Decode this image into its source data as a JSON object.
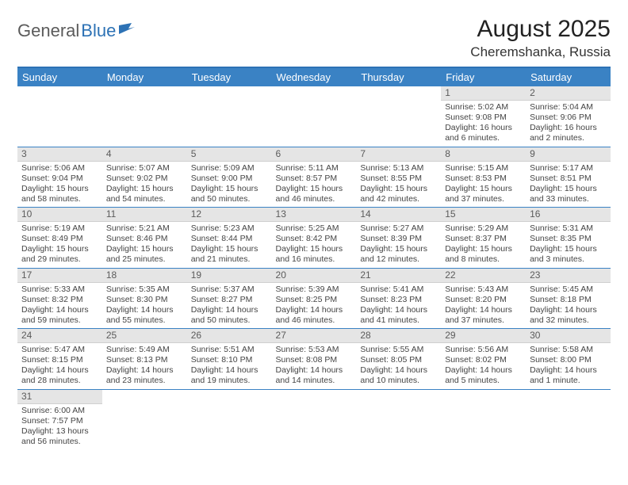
{
  "logo": {
    "general": "General",
    "blue": "Blue"
  },
  "title": "August 2025",
  "location": "Cheremshanka, Russia",
  "colors": {
    "header_bg": "#3a82c4",
    "header_border": "#2d72b5",
    "daynum_bg": "#e5e5e5",
    "text": "#333333",
    "logo_gray": "#5b5b5b",
    "logo_blue": "#2d72b5"
  },
  "day_headers": [
    "Sunday",
    "Monday",
    "Tuesday",
    "Wednesday",
    "Thursday",
    "Friday",
    "Saturday"
  ],
  "weeks": [
    [
      null,
      null,
      null,
      null,
      null,
      {
        "n": "1",
        "sunrise": "Sunrise: 5:02 AM",
        "sunset": "Sunset: 9:08 PM",
        "daylight": "Daylight: 16 hours and 6 minutes."
      },
      {
        "n": "2",
        "sunrise": "Sunrise: 5:04 AM",
        "sunset": "Sunset: 9:06 PM",
        "daylight": "Daylight: 16 hours and 2 minutes."
      }
    ],
    [
      {
        "n": "3",
        "sunrise": "Sunrise: 5:06 AM",
        "sunset": "Sunset: 9:04 PM",
        "daylight": "Daylight: 15 hours and 58 minutes."
      },
      {
        "n": "4",
        "sunrise": "Sunrise: 5:07 AM",
        "sunset": "Sunset: 9:02 PM",
        "daylight": "Daylight: 15 hours and 54 minutes."
      },
      {
        "n": "5",
        "sunrise": "Sunrise: 5:09 AM",
        "sunset": "Sunset: 9:00 PM",
        "daylight": "Daylight: 15 hours and 50 minutes."
      },
      {
        "n": "6",
        "sunrise": "Sunrise: 5:11 AM",
        "sunset": "Sunset: 8:57 PM",
        "daylight": "Daylight: 15 hours and 46 minutes."
      },
      {
        "n": "7",
        "sunrise": "Sunrise: 5:13 AM",
        "sunset": "Sunset: 8:55 PM",
        "daylight": "Daylight: 15 hours and 42 minutes."
      },
      {
        "n": "8",
        "sunrise": "Sunrise: 5:15 AM",
        "sunset": "Sunset: 8:53 PM",
        "daylight": "Daylight: 15 hours and 37 minutes."
      },
      {
        "n": "9",
        "sunrise": "Sunrise: 5:17 AM",
        "sunset": "Sunset: 8:51 PM",
        "daylight": "Daylight: 15 hours and 33 minutes."
      }
    ],
    [
      {
        "n": "10",
        "sunrise": "Sunrise: 5:19 AM",
        "sunset": "Sunset: 8:49 PM",
        "daylight": "Daylight: 15 hours and 29 minutes."
      },
      {
        "n": "11",
        "sunrise": "Sunrise: 5:21 AM",
        "sunset": "Sunset: 8:46 PM",
        "daylight": "Daylight: 15 hours and 25 minutes."
      },
      {
        "n": "12",
        "sunrise": "Sunrise: 5:23 AM",
        "sunset": "Sunset: 8:44 PM",
        "daylight": "Daylight: 15 hours and 21 minutes."
      },
      {
        "n": "13",
        "sunrise": "Sunrise: 5:25 AM",
        "sunset": "Sunset: 8:42 PM",
        "daylight": "Daylight: 15 hours and 16 minutes."
      },
      {
        "n": "14",
        "sunrise": "Sunrise: 5:27 AM",
        "sunset": "Sunset: 8:39 PM",
        "daylight": "Daylight: 15 hours and 12 minutes."
      },
      {
        "n": "15",
        "sunrise": "Sunrise: 5:29 AM",
        "sunset": "Sunset: 8:37 PM",
        "daylight": "Daylight: 15 hours and 8 minutes."
      },
      {
        "n": "16",
        "sunrise": "Sunrise: 5:31 AM",
        "sunset": "Sunset: 8:35 PM",
        "daylight": "Daylight: 15 hours and 3 minutes."
      }
    ],
    [
      {
        "n": "17",
        "sunrise": "Sunrise: 5:33 AM",
        "sunset": "Sunset: 8:32 PM",
        "daylight": "Daylight: 14 hours and 59 minutes."
      },
      {
        "n": "18",
        "sunrise": "Sunrise: 5:35 AM",
        "sunset": "Sunset: 8:30 PM",
        "daylight": "Daylight: 14 hours and 55 minutes."
      },
      {
        "n": "19",
        "sunrise": "Sunrise: 5:37 AM",
        "sunset": "Sunset: 8:27 PM",
        "daylight": "Daylight: 14 hours and 50 minutes."
      },
      {
        "n": "20",
        "sunrise": "Sunrise: 5:39 AM",
        "sunset": "Sunset: 8:25 PM",
        "daylight": "Daylight: 14 hours and 46 minutes."
      },
      {
        "n": "21",
        "sunrise": "Sunrise: 5:41 AM",
        "sunset": "Sunset: 8:23 PM",
        "daylight": "Daylight: 14 hours and 41 minutes."
      },
      {
        "n": "22",
        "sunrise": "Sunrise: 5:43 AM",
        "sunset": "Sunset: 8:20 PM",
        "daylight": "Daylight: 14 hours and 37 minutes."
      },
      {
        "n": "23",
        "sunrise": "Sunrise: 5:45 AM",
        "sunset": "Sunset: 8:18 PM",
        "daylight": "Daylight: 14 hours and 32 minutes."
      }
    ],
    [
      {
        "n": "24",
        "sunrise": "Sunrise: 5:47 AM",
        "sunset": "Sunset: 8:15 PM",
        "daylight": "Daylight: 14 hours and 28 minutes."
      },
      {
        "n": "25",
        "sunrise": "Sunrise: 5:49 AM",
        "sunset": "Sunset: 8:13 PM",
        "daylight": "Daylight: 14 hours and 23 minutes."
      },
      {
        "n": "26",
        "sunrise": "Sunrise: 5:51 AM",
        "sunset": "Sunset: 8:10 PM",
        "daylight": "Daylight: 14 hours and 19 minutes."
      },
      {
        "n": "27",
        "sunrise": "Sunrise: 5:53 AM",
        "sunset": "Sunset: 8:08 PM",
        "daylight": "Daylight: 14 hours and 14 minutes."
      },
      {
        "n": "28",
        "sunrise": "Sunrise: 5:55 AM",
        "sunset": "Sunset: 8:05 PM",
        "daylight": "Daylight: 14 hours and 10 minutes."
      },
      {
        "n": "29",
        "sunrise": "Sunrise: 5:56 AM",
        "sunset": "Sunset: 8:02 PM",
        "daylight": "Daylight: 14 hours and 5 minutes."
      },
      {
        "n": "30",
        "sunrise": "Sunrise: 5:58 AM",
        "sunset": "Sunset: 8:00 PM",
        "daylight": "Daylight: 14 hours and 1 minute."
      }
    ],
    [
      {
        "n": "31",
        "sunrise": "Sunrise: 6:00 AM",
        "sunset": "Sunset: 7:57 PM",
        "daylight": "Daylight: 13 hours and 56 minutes."
      },
      null,
      null,
      null,
      null,
      null,
      null
    ]
  ]
}
